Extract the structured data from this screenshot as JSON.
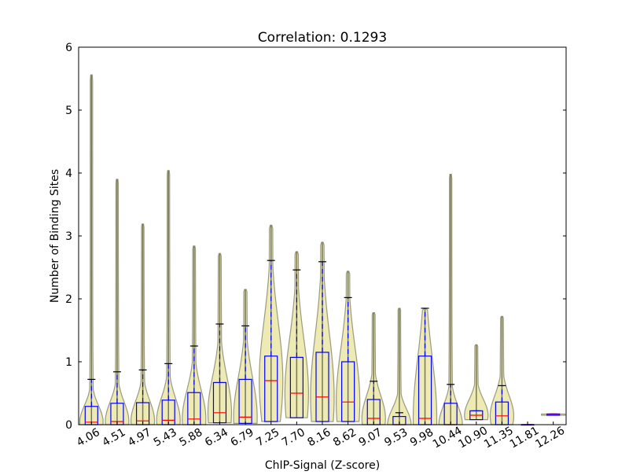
{
  "chart_data": {
    "type": "violin-box",
    "title": "Correlation: 0.1293",
    "xlabel": "ChIP-Signal (Z-score)",
    "ylabel": "Number of Binding Sites",
    "ylim": [
      0,
      6
    ],
    "yticks": [
      "0",
      "1",
      "2",
      "3",
      "4",
      "5",
      "6"
    ],
    "categories": [
      "4.06",
      "4.51",
      "4.97",
      "5.43",
      "5.88",
      "6.34",
      "6.79",
      "7.25",
      "7.70",
      "8.16",
      "8.62",
      "9.07",
      "9.53",
      "9.98",
      "10.44",
      "10.90",
      "11.35",
      "11.81",
      "12.26"
    ],
    "series": [
      {
        "name": "4.06",
        "q1": 0,
        "median": 0.04,
        "q3": 0.29,
        "whisker_low": 0,
        "whisker_high": 0.72,
        "max": 5.56
      },
      {
        "name": "4.51",
        "q1": 0,
        "median": 0.05,
        "q3": 0.34,
        "whisker_low": 0,
        "whisker_high": 0.84,
        "max": 3.9
      },
      {
        "name": "4.97",
        "q1": 0,
        "median": 0.06,
        "q3": 0.35,
        "whisker_low": 0,
        "whisker_high": 0.87,
        "max": 3.19
      },
      {
        "name": "5.43",
        "q1": 0,
        "median": 0.07,
        "q3": 0.39,
        "whisker_low": 0,
        "whisker_high": 0.97,
        "max": 4.04
      },
      {
        "name": "5.88",
        "q1": 0,
        "median": 0.09,
        "q3": 0.51,
        "whisker_low": 0,
        "whisker_high": 1.25,
        "max": 2.84
      },
      {
        "name": "6.34",
        "q1": 0.03,
        "median": 0.19,
        "q3": 0.67,
        "whisker_low": 0,
        "whisker_high": 1.6,
        "max": 2.72
      },
      {
        "name": "6.79",
        "q1": 0.02,
        "median": 0.12,
        "q3": 0.72,
        "whisker_low": 0,
        "whisker_high": 1.57,
        "max": 2.15
      },
      {
        "name": "7.25",
        "q1": 0.05,
        "median": 0.7,
        "q3": 1.09,
        "whisker_low": 0,
        "whisker_high": 2.61,
        "max": 3.17
      },
      {
        "name": "7.70",
        "q1": 0.11,
        "median": 0.5,
        "q3": 1.07,
        "whisker_low": 0,
        "whisker_high": 2.46,
        "max": 2.75
      },
      {
        "name": "8.16",
        "q1": 0.05,
        "median": 0.44,
        "q3": 1.15,
        "whisker_low": 0,
        "whisker_high": 2.59,
        "max": 2.9
      },
      {
        "name": "8.62",
        "q1": 0.05,
        "median": 0.36,
        "q3": 1.0,
        "whisker_low": 0,
        "whisker_high": 2.02,
        "max": 2.44
      },
      {
        "name": "9.07",
        "q1": 0,
        "median": 0.1,
        "q3": 0.4,
        "whisker_low": 0,
        "whisker_high": 0.69,
        "max": 1.78
      },
      {
        "name": "9.53",
        "q1": 0,
        "median": 0,
        "q3": 0.13,
        "whisker_low": 0,
        "whisker_high": 0.19,
        "max": 1.85
      },
      {
        "name": "9.98",
        "q1": 0,
        "median": 0.1,
        "q3": 1.09,
        "whisker_low": 0,
        "whisker_high": 1.85,
        "max": 1.85
      },
      {
        "name": "10.44",
        "q1": 0,
        "median": 0,
        "q3": 0.34,
        "whisker_low": 0,
        "whisker_high": 0.64,
        "max": 3.98
      },
      {
        "name": "10.90",
        "q1": 0.08,
        "median": 0.15,
        "q3": 0.22,
        "whisker_low": 0.08,
        "whisker_high": 0.22,
        "max": 1.27
      },
      {
        "name": "11.35",
        "q1": 0,
        "median": 0.14,
        "q3": 0.36,
        "whisker_low": 0,
        "whisker_high": 0.62,
        "max": 1.72
      },
      {
        "name": "11.81",
        "q1": 0,
        "median": 0,
        "q3": 0,
        "whisker_low": 0,
        "whisker_high": 0,
        "max": 0
      },
      {
        "name": "12.26",
        "q1": 0.15,
        "median": 0.16,
        "q3": 0.17,
        "whisker_low": 0.15,
        "whisker_high": 0.17,
        "max": 0.17
      }
    ],
    "colors": {
      "violin": "#eeeab4",
      "violin_edge": "#9a9a80",
      "box": "#0000ff",
      "median": "#ff0000",
      "whisker": "#0000ff",
      "cap": "#000000"
    },
    "grid": false,
    "legend": "none"
  }
}
